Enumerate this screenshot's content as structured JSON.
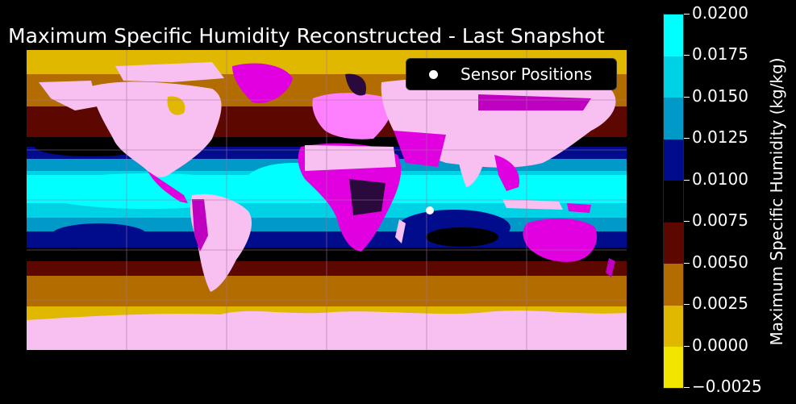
{
  "title": "Maximum Specific Humidity Reconstructed - Last Snapshot",
  "legend": {
    "label": "Sensor Positions"
  },
  "colorbar": {
    "label": "Maximum Specific Humidity (kg/kg)",
    "ticks": [
      "0.0200",
      "0.0175",
      "0.0150",
      "0.0125",
      "0.0100",
      "0.0075",
      "0.0050",
      "0.0025",
      "0.0000",
      "−0.0025"
    ],
    "levels": [
      -0.0025,
      0.0,
      0.0025,
      0.005,
      0.0075,
      0.01,
      0.0125,
      0.015,
      0.0175,
      0.02
    ],
    "colors": [
      "#f2e600",
      "#e0b800",
      "#b36c00",
      "#5c0800",
      "#000000",
      "#000c8c",
      "#0099c8",
      "#00d2e6",
      "#00ffff"
    ]
  },
  "map": {
    "projection": "equirectangular",
    "land_color": "#f7c0f0",
    "land_accent_colors": [
      "#e000e0",
      "#c000c0",
      "#2a0a3c",
      "#ff80ff"
    ],
    "gridlines": "on",
    "sensor_positions": [
      [
        61,
        -5
      ]
    ]
  }
}
